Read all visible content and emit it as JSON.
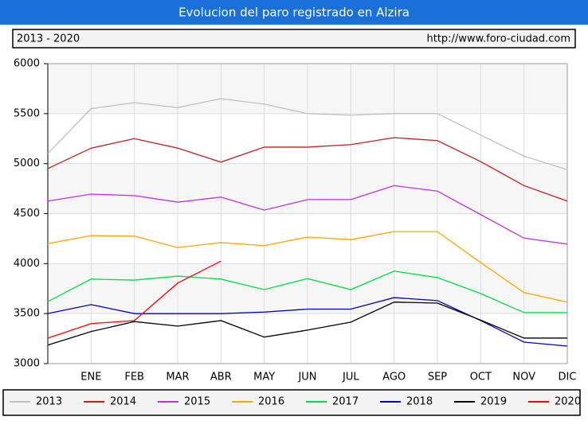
{
  "chart_data": {
    "type": "line",
    "title": "Evolucion del paro registrado en Alzira",
    "subtitle": "2013 - 2020",
    "source": "http://www.foro-ciudad.com",
    "categories": [
      null,
      "ENE",
      "FEB",
      "MAR",
      "ABR",
      "MAY",
      "JUN",
      "JUL",
      "AGO",
      "SEP",
      "OCT",
      "NOV",
      "DIC"
    ],
    "ylim": [
      3000,
      6000
    ],
    "yticks": [
      3000,
      3500,
      4000,
      4500,
      5000,
      5500,
      6000
    ],
    "grid": true,
    "legend": "bottom",
    "series": [
      {
        "name": "2013",
        "color": "#c0c0c0",
        "values": [
          5100,
          5550,
          5610,
          5560,
          5650,
          5595,
          5500,
          5485,
          5500,
          5500,
          5285,
          5075,
          4940
        ]
      },
      {
        "name": "2014",
        "color": "#c02020",
        "values": [
          4950,
          5155,
          5250,
          5155,
          5015,
          5165,
          5165,
          5190,
          5260,
          5230,
          5020,
          4780,
          4625
        ]
      },
      {
        "name": "2015",
        "color": "#c030e0",
        "values": [
          4625,
          4695,
          4680,
          4615,
          4665,
          4535,
          4640,
          4640,
          4780,
          4725,
          4490,
          4255,
          4195
        ]
      },
      {
        "name": "2016",
        "color": "#ffa500",
        "values": [
          4200,
          4280,
          4275,
          4160,
          4210,
          4180,
          4265,
          4240,
          4320,
          4320,
          4010,
          3710,
          3615
        ]
      },
      {
        "name": "2017",
        "color": "#00e040",
        "values": [
          3620,
          3845,
          3835,
          3875,
          3845,
          3740,
          3850,
          3740,
          3925,
          3860,
          3700,
          3510,
          3510
        ]
      },
      {
        "name": "2018",
        "color": "#0000c0",
        "values": [
          3500,
          3590,
          3500,
          3500,
          3500,
          3515,
          3545,
          3545,
          3660,
          3630,
          3430,
          3215,
          3175
        ]
      },
      {
        "name": "2019",
        "color": "#000000",
        "values": [
          3185,
          3320,
          3420,
          3375,
          3430,
          3265,
          3335,
          3415,
          3615,
          3605,
          3435,
          3255,
          3255
        ]
      },
      {
        "name": "2020",
        "color": "#ff0000",
        "values": [
          3255,
          3400,
          3430,
          3805,
          4025,
          null,
          null,
          null,
          null,
          null,
          null,
          null,
          null
        ]
      }
    ]
  }
}
